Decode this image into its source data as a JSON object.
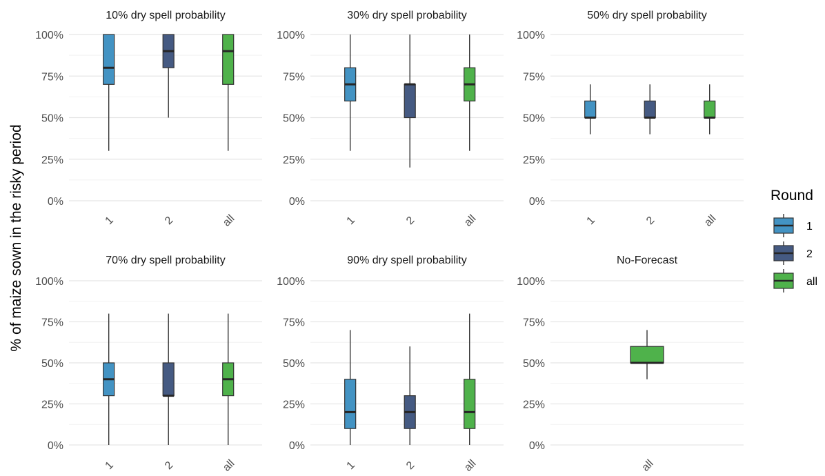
{
  "chart_data": {
    "type": "boxplot",
    "ylabel": "% of maize sown in the risky period",
    "y_ticks": [
      "0%",
      "25%",
      "50%",
      "75%",
      "100%"
    ],
    "ylim": [
      0,
      100
    ],
    "grid": true,
    "legend": {
      "title": "Round",
      "position": "right",
      "entries": [
        {
          "label": "1",
          "color": "#4393C3"
        },
        {
          "label": "2",
          "color": "#455A82"
        },
        {
          "label": "all",
          "color": "#4FB24B"
        }
      ]
    },
    "panels": [
      {
        "title": "10% dry spell probability",
        "boxes": [
          {
            "x": "1",
            "min": 30,
            "q1": 70,
            "median": 80,
            "q3": 100,
            "max": 100
          },
          {
            "x": "2",
            "min": 50,
            "q1": 80,
            "median": 90,
            "q3": 100,
            "max": 100
          },
          {
            "x": "all",
            "min": 30,
            "q1": 70,
            "median": 90,
            "q3": 100,
            "max": 100
          }
        ]
      },
      {
        "title": "30% dry spell probability",
        "boxes": [
          {
            "x": "1",
            "min": 30,
            "q1": 60,
            "median": 70,
            "q3": 80,
            "max": 100
          },
          {
            "x": "2",
            "min": 20,
            "q1": 50,
            "median": 70,
            "q3": 70,
            "max": 100
          },
          {
            "x": "all",
            "min": 30,
            "q1": 60,
            "median": 70,
            "q3": 80,
            "max": 100
          }
        ]
      },
      {
        "title": "50% dry spell probability",
        "boxes": [
          {
            "x": "1",
            "min": 40,
            "q1": 50,
            "median": 50,
            "q3": 60,
            "max": 70
          },
          {
            "x": "2",
            "min": 40,
            "q1": 50,
            "median": 50,
            "q3": 60,
            "max": 70
          },
          {
            "x": "all",
            "min": 40,
            "q1": 50,
            "median": 50,
            "q3": 60,
            "max": 70
          }
        ]
      },
      {
        "title": "70% dry spell probability",
        "boxes": [
          {
            "x": "1",
            "min": 0,
            "q1": 30,
            "median": 40,
            "q3": 50,
            "max": 80
          },
          {
            "x": "2",
            "min": 0,
            "q1": 30,
            "median": 30,
            "q3": 50,
            "max": 80
          },
          {
            "x": "all",
            "min": 0,
            "q1": 30,
            "median": 40,
            "q3": 50,
            "max": 80
          }
        ]
      },
      {
        "title": "90% dry spell probability",
        "boxes": [
          {
            "x": "1",
            "min": 0,
            "q1": 10,
            "median": 20,
            "q3": 40,
            "max": 70
          },
          {
            "x": "2",
            "min": 0,
            "q1": 10,
            "median": 20,
            "q3": 30,
            "max": 60
          },
          {
            "x": "all",
            "min": 0,
            "q1": 10,
            "median": 20,
            "q3": 40,
            "max": 80
          }
        ]
      },
      {
        "title": "No-Forecast",
        "boxes": [
          {
            "x": "all",
            "min": 40,
            "q1": 50,
            "median": 50,
            "q3": 60,
            "max": 70
          }
        ]
      }
    ]
  }
}
